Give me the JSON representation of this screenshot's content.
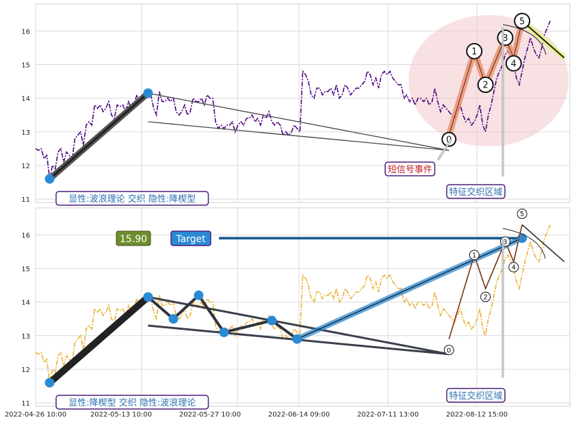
{
  "chart_data": [
    {
      "type": "line",
      "panel": "top",
      "ylim": [
        10.9,
        16.8
      ],
      "y_ticks": [
        "11",
        "12",
        "13",
        "14",
        "15",
        "16"
      ],
      "price_color": "#4b0082",
      "label_left": "显性:波浪理论 交织 隐性:降楔型",
      "label_short_signal": "短信号事件",
      "label_feature_zone": "特征交织区域",
      "wave_labels": [
        "0",
        "1",
        "2",
        "3",
        "4",
        "5"
      ],
      "wave_points": [
        [
          147,
          12.9
        ],
        [
          156,
          15.4
        ],
        [
          160,
          14.4
        ],
        [
          167,
          15.8
        ],
        [
          170,
          15.2
        ],
        [
          173,
          16.3
        ]
      ],
      "trend_line": [
        [
          5,
          11.6
        ],
        [
          40,
          14.15
        ]
      ],
      "wedge_upper": [
        [
          40,
          14.15
        ],
        [
          147,
          12.45
        ]
      ],
      "wedge_lower": [
        [
          40,
          13.3
        ],
        [
          147,
          12.45
        ]
      ]
    },
    {
      "type": "line",
      "panel": "bottom",
      "ylim": [
        10.9,
        16.8
      ],
      "y_ticks": [
        "11",
        "12",
        "13",
        "14",
        "15",
        "16"
      ],
      "price_color": "#e8b030",
      "label_left": "显性:降楔型 交织 隐性:波浪理论",
      "label_feature_zone": "特征交织区域",
      "value_badge": "15.90",
      "target_badge": "Target",
      "target_value": 15.9,
      "wave_labels": [
        "0",
        "1",
        "2",
        "3",
        "4",
        "5"
      ],
      "wave_points": [
        [
          147,
          12.9
        ],
        [
          156,
          15.4
        ],
        [
          160,
          14.4
        ],
        [
          167,
          15.8
        ],
        [
          170,
          15.2
        ],
        [
          173,
          16.3
        ]
      ],
      "wedge_points": [
        [
          5,
          11.6
        ],
        [
          40,
          14.15
        ],
        [
          49,
          13.5
        ],
        [
          58,
          14.2
        ],
        [
          67,
          13.1
        ],
        [
          84,
          13.45
        ],
        [
          93,
          12.9
        ],
        [
          173,
          15.9
        ]
      ]
    }
  ],
  "x_tick_labels": [
    "2022-04-26 10:00",
    "2022-05-13 10:00",
    "2022-05-27 10:00",
    "2022-06-14 09:00",
    "2022-07-11 13:00",
    "2022-08-12 15:00"
  ],
  "x_range": [
    0,
    190
  ],
  "price_series": [
    12.5,
    12.45,
    12.5,
    12.2,
    12.3,
    11.6,
    12.0,
    11.9,
    12.4,
    12.5,
    12.1,
    12.4,
    12.3,
    12.2,
    12.8,
    12.9,
    13.0,
    12.6,
    13.2,
    13.3,
    13.2,
    13.8,
    13.7,
    13.8,
    13.6,
    13.7,
    13.9,
    13.5,
    13.4,
    13.8,
    13.75,
    13.8,
    13.6,
    13.9,
    13.7,
    13.8,
    14.1,
    13.9,
    14.0,
    14.1,
    14.15,
    14.1,
    13.7,
    13.5,
    14.2,
    13.9,
    13.9,
    14.0,
    13.9,
    14.0,
    13.6,
    13.5,
    13.6,
    13.8,
    13.5,
    13.6,
    14.0,
    13.9,
    13.9,
    14.0,
    13.8,
    14.1,
    14.0,
    14.0,
    13.3,
    13.1,
    13.2,
    13.1,
    13.2,
    13.2,
    13.3,
    13.0,
    13.2,
    13.3,
    13.2,
    13.4,
    13.4,
    13.5,
    13.3,
    13.4,
    13.2,
    13.5,
    13.4,
    13.6,
    13.3,
    13.2,
    13.3,
    13.2,
    12.9,
    13.0,
    12.9,
    13.0,
    13.2,
    13.1,
    13.0,
    14.8,
    14.7,
    14.5,
    14.1,
    14.0,
    14.3,
    14.3,
    14.1,
    14.2,
    14.2,
    14.3,
    14.1,
    14.4,
    14.0,
    14.1,
    14.4,
    14.3,
    14.1,
    14.2,
    14.3,
    14.3,
    14.4,
    14.5,
    14.8,
    14.7,
    14.4,
    14.6,
    14.3,
    14.7,
    14.8,
    14.7,
    14.8,
    14.6,
    14.5,
    14.4,
    14.4,
    14.0,
    14.1,
    13.9,
    14.0,
    13.8,
    14.0,
    14.0,
    13.9,
    14.0,
    13.8,
    13.9,
    14.3,
    13.9,
    13.6,
    13.8,
    13.7,
    13.6,
    13.5,
    13.4,
    13.6,
    13.8,
    13.5,
    13.3,
    13.4,
    13.2,
    13.3,
    13.5,
    13.8,
    13.2,
    13.0,
    13.5,
    13.8,
    14.2,
    14.6,
    14.8,
    15.0,
    15.3,
    15.4,
    15.2,
    15.0,
    14.6,
    14.4,
    14.8,
    15.2,
    15.5,
    15.8,
    15.5,
    15.3,
    15.2,
    15.5,
    15.9,
    16.1,
    16.3
  ],
  "event_arrow_target": [
    138,
    13.05
  ],
  "projection": [
    [
      173,
      16.3
    ],
    [
      188,
      15.2
    ]
  ]
}
